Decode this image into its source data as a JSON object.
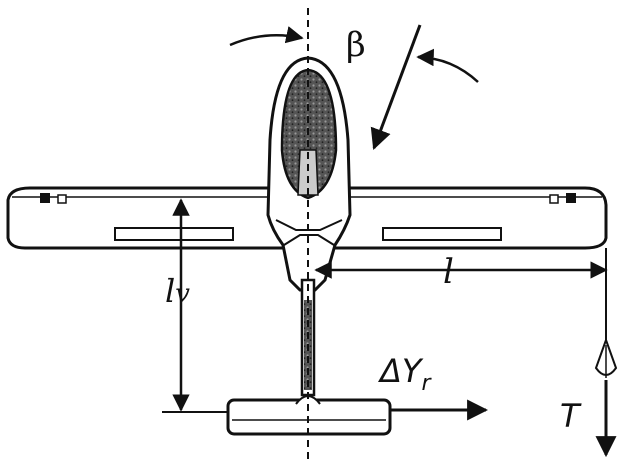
{
  "labels": {
    "beta": "β",
    "l": "l",
    "lv_main": "l",
    "lv_sub": "v",
    "delta_y_main": "ΔY",
    "delta_y_sub": "r",
    "t": "T"
  },
  "colors": {
    "ink": "#111111",
    "paper": "#ffffff"
  }
}
